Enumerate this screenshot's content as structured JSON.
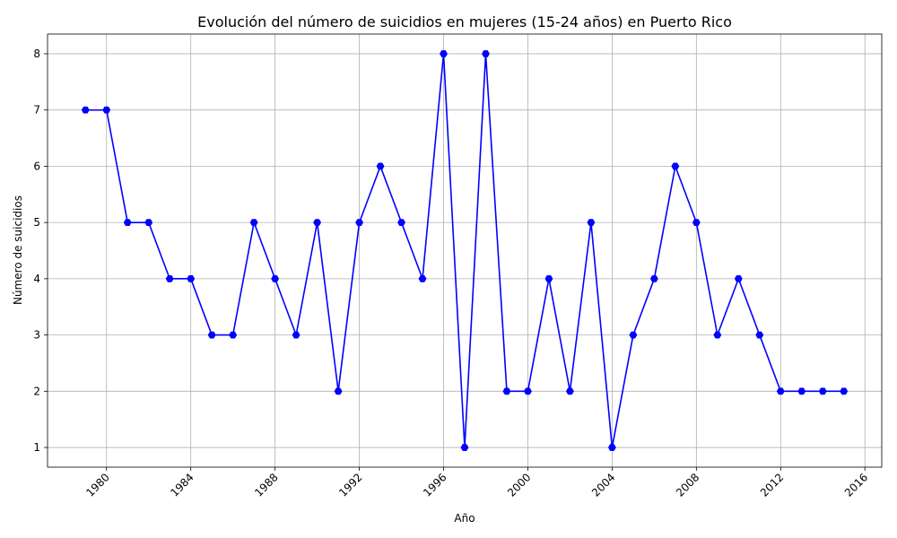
{
  "chart_data": {
    "type": "line",
    "title": "Evolución del número de suicidios en mujeres (15-24 años) en Puerto Rico",
    "xlabel": "Año",
    "ylabel": "Número de suicidios",
    "x": [
      1979,
      1980,
      1981,
      1982,
      1983,
      1984,
      1985,
      1986,
      1987,
      1988,
      1989,
      1990,
      1991,
      1992,
      1993,
      1994,
      1995,
      1996,
      1997,
      1998,
      1999,
      2000,
      2001,
      2002,
      2003,
      2004,
      2005,
      2006,
      2007,
      2008,
      2009,
      2010,
      2011,
      2012,
      2013,
      2014,
      2015
    ],
    "series": [
      {
        "values": [
          7,
          7,
          5,
          5,
          4,
          4,
          3,
          3,
          5,
          4,
          3,
          5,
          2,
          5,
          6,
          5,
          4,
          8,
          1,
          8,
          2,
          2,
          4,
          2,
          5,
          1,
          3,
          4,
          6,
          5,
          3,
          4,
          3,
          2,
          2,
          2,
          2
        ],
        "color": "#0000ff",
        "marker": "hexagon"
      }
    ],
    "xticks": [
      1980,
      1984,
      1988,
      1992,
      1996,
      2000,
      2004,
      2008,
      2012,
      2016
    ],
    "yticks": [
      1,
      2,
      3,
      4,
      5,
      6,
      7,
      8
    ],
    "xlim": [
      1977.2,
      2016.8
    ],
    "ylim": [
      0.65,
      8.35
    ],
    "grid": true,
    "xtick_rotation": 45
  }
}
